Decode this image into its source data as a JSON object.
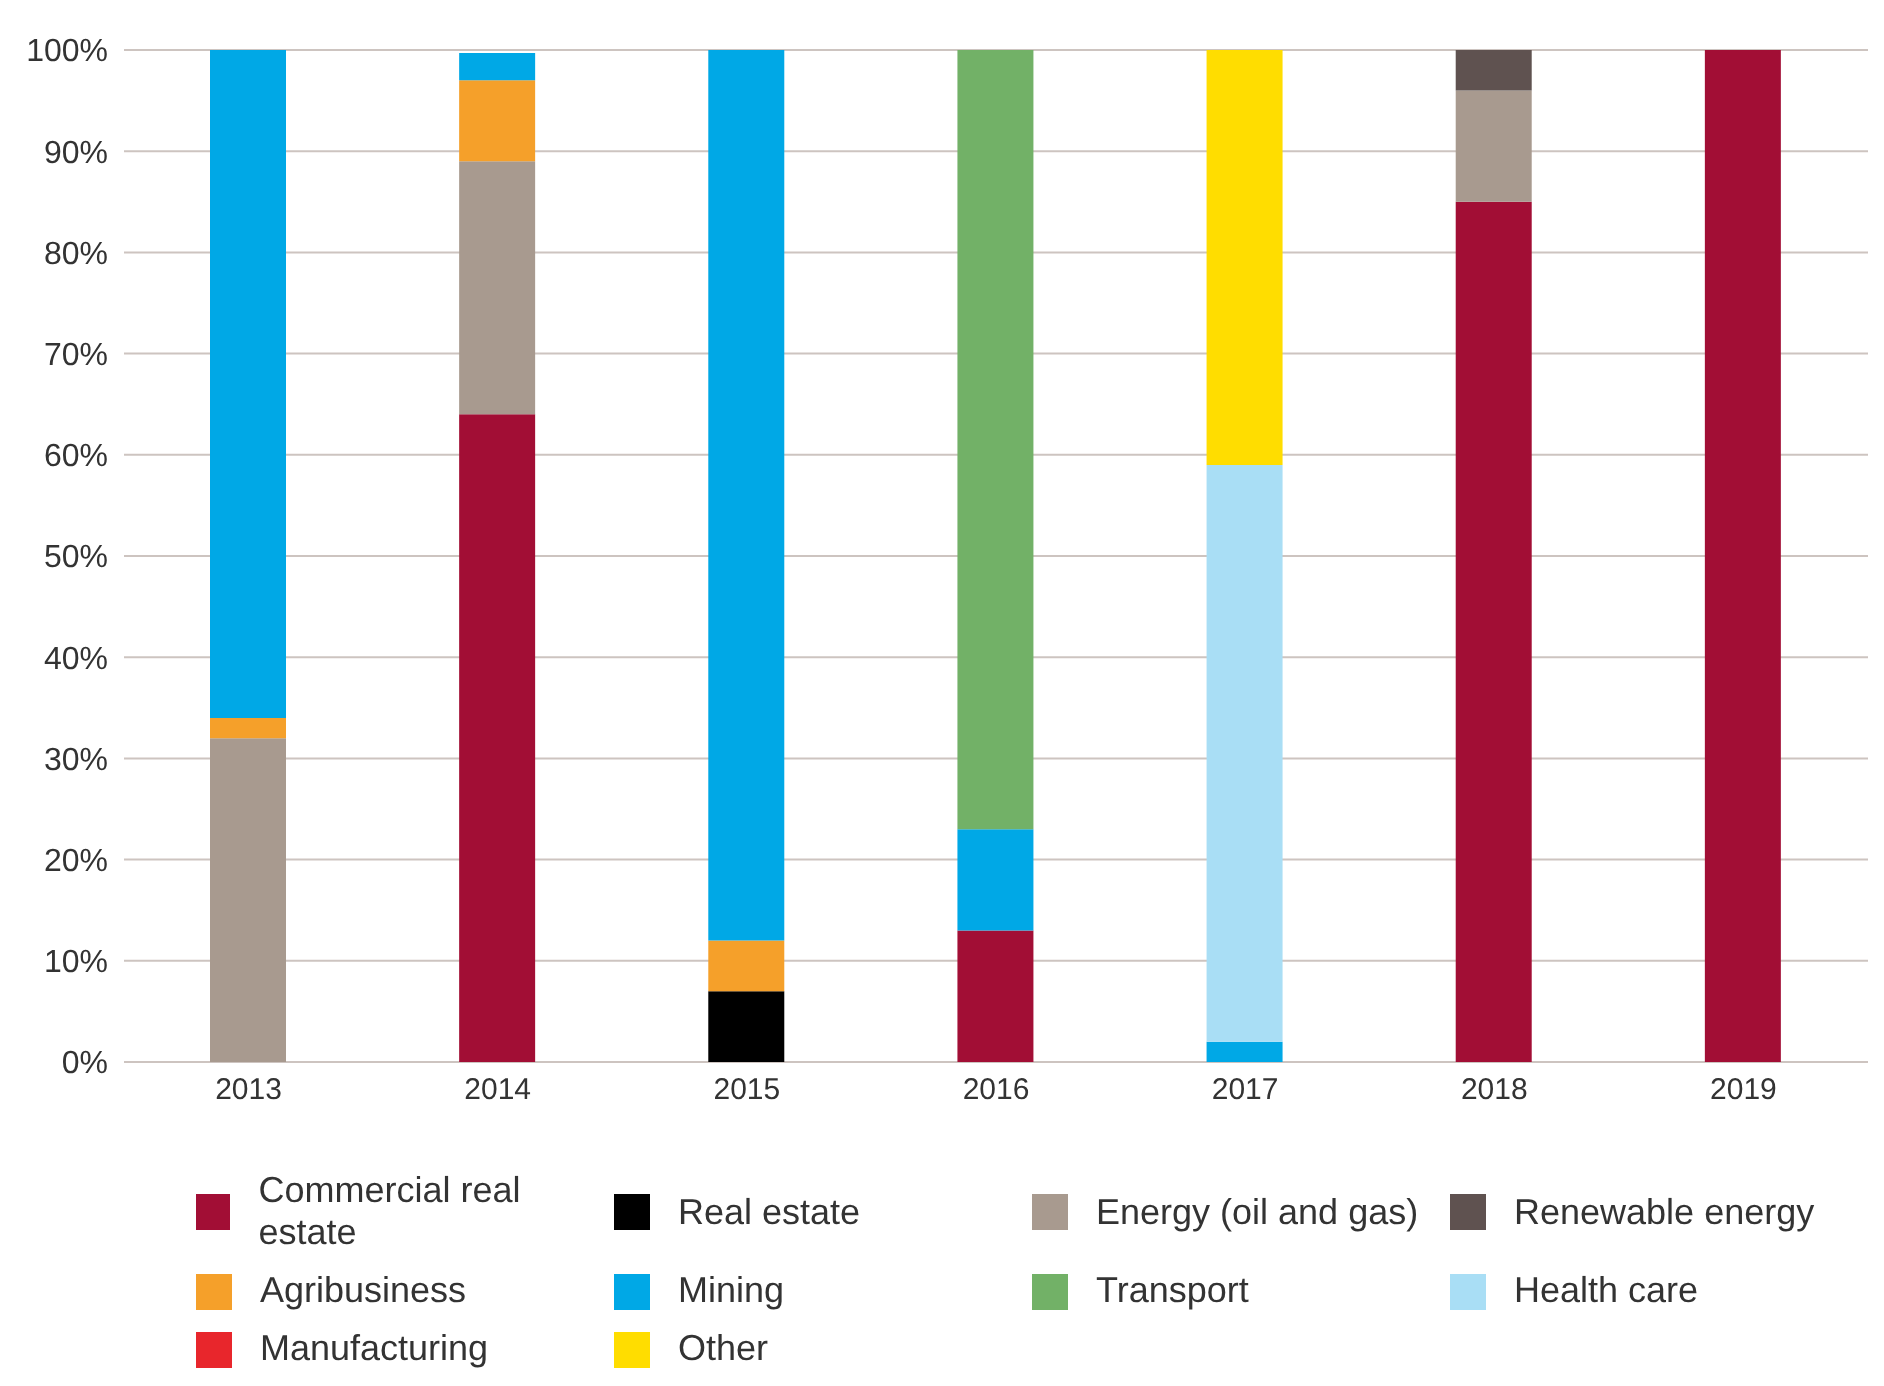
{
  "chart_data": {
    "type": "bar",
    "stacked": true,
    "categories": [
      "2013",
      "2014",
      "2015",
      "2016",
      "2017",
      "2018",
      "2019"
    ],
    "series": [
      {
        "name": "Commercial real estate",
        "color": "#a20e35",
        "values": [
          null,
          64,
          null,
          13,
          null,
          85,
          100
        ]
      },
      {
        "name": "Real estate",
        "color": "#000000",
        "values": [
          null,
          null,
          7,
          null,
          null,
          null,
          null
        ]
      },
      {
        "name": "Energy (oil and gas)",
        "color": "#a89a8f",
        "values": [
          32,
          25,
          null,
          null,
          null,
          11,
          null
        ]
      },
      {
        "name": "Renewable energy",
        "color": "#5f5250",
        "values": [
          null,
          null,
          null,
          null,
          null,
          4,
          null
        ]
      },
      {
        "name": "Agribusiness",
        "color": "#f5a02a",
        "values": [
          2,
          8,
          5,
          null,
          null,
          null,
          null
        ]
      },
      {
        "name": "Mining",
        "color": "#00a8e6",
        "values": [
          66,
          2.7,
          88,
          10,
          2,
          null,
          null
        ]
      },
      {
        "name": "Transport",
        "color": "#72b167",
        "values": [
          null,
          null,
          null,
          77,
          null,
          null,
          null
        ]
      },
      {
        "name": "Health care",
        "color": "#a9def5",
        "values": [
          null,
          null,
          null,
          null,
          57,
          null,
          null
        ]
      },
      {
        "name": "Manufacturing",
        "color": "#e8262c",
        "values": [
          null,
          null,
          null,
          null,
          null,
          null,
          null
        ]
      },
      {
        "name": "Other",
        "color": "#ffdd00",
        "values": [
          null,
          null,
          null,
          null,
          41,
          null,
          null
        ]
      }
    ],
    "ylim": [
      0,
      100
    ],
    "yticks": [
      {
        "value": 0,
        "label": "0%"
      },
      {
        "value": 10,
        "label": "10%"
      },
      {
        "value": 20,
        "label": "20%"
      },
      {
        "value": 30,
        "label": "30%"
      },
      {
        "value": 40,
        "label": "40%"
      },
      {
        "value": 50,
        "label": "50%"
      },
      {
        "value": 60,
        "label": "60%"
      },
      {
        "value": 70,
        "label": "70%"
      },
      {
        "value": 80,
        "label": "80%"
      },
      {
        "value": 90,
        "label": "90%"
      },
      {
        "value": 100,
        "label": "100%"
      }
    ],
    "grid": "y",
    "legend": "bottom"
  }
}
